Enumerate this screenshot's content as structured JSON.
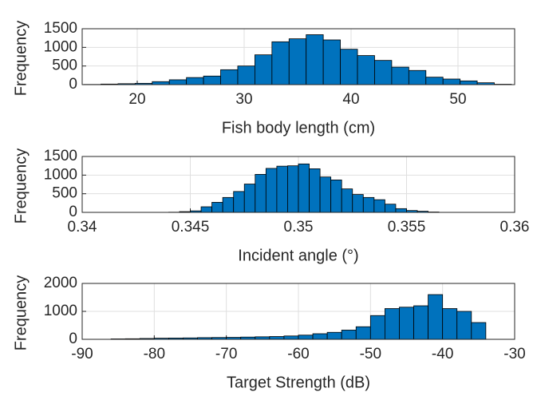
{
  "chart_data": [
    {
      "type": "histogram",
      "xlabel": "Fish body length (cm)",
      "ylabel": "Frequency",
      "color": "#0072BD",
      "grid": true,
      "bins": [
        15,
        16.6,
        18.2,
        19.8,
        21.4,
        23,
        24.6,
        26.2,
        27.8,
        29.4,
        31,
        32.6,
        34.2,
        35.8,
        37.4,
        39,
        40.6,
        42.2,
        43.8,
        45.4,
        47,
        48.6,
        50.2,
        51.8,
        53.4,
        55
      ],
      "values": [
        5,
        15,
        25,
        35,
        80,
        130,
        190,
        230,
        400,
        500,
        800,
        1150,
        1230,
        1340,
        1200,
        950,
        780,
        650,
        470,
        380,
        200,
        150,
        100,
        50,
        10
      ],
      "xlim": [
        14.85,
        55.3
      ],
      "xticks": [
        20,
        30,
        40,
        50
      ],
      "ylim": [
        0,
        1500
      ],
      "yticks": [
        0,
        500,
        1000,
        1500
      ]
    },
    {
      "type": "histogram",
      "xlabel": "Incident angle (°)",
      "ylabel": "Frequency",
      "color": "#0072BD",
      "grid": true,
      "bins": [
        0.344,
        0.3445,
        0.345,
        0.3455,
        0.346,
        0.3465,
        0.347,
        0.3475,
        0.348,
        0.3485,
        0.349,
        0.3495,
        0.35,
        0.3505,
        0.351,
        0.3515,
        0.352,
        0.3525,
        0.353,
        0.3535,
        0.354,
        0.3545,
        0.355,
        0.3555,
        0.356,
        0.3565
      ],
      "values": [
        5,
        20,
        40,
        150,
        270,
        400,
        560,
        760,
        1020,
        1180,
        1240,
        1250,
        1300,
        1170,
        950,
        870,
        630,
        480,
        400,
        340,
        220,
        100,
        50,
        30,
        10
      ],
      "xlim": [
        0.34,
        0.36
      ],
      "xticks": [
        0.34,
        0.345,
        0.35,
        0.355,
        0.36
      ],
      "ylim": [
        0,
        1500
      ],
      "yticks": [
        0,
        500,
        1000,
        1500
      ]
    },
    {
      "type": "histogram",
      "xlabel": "Target Strength (dB)",
      "ylabel": "Frequency",
      "color": "#0072BD",
      "grid": true,
      "bins": [
        -86,
        -84,
        -82,
        -80,
        -78,
        -76,
        -74,
        -72,
        -70,
        -68,
        -66,
        -64,
        -62,
        -60,
        -58,
        -56,
        -54,
        -52,
        -50,
        -48,
        -46,
        -44,
        -42,
        -40,
        -38,
        -36,
        -34
      ],
      "values": [
        15,
        20,
        30,
        40,
        45,
        50,
        60,
        65,
        70,
        80,
        90,
        100,
        120,
        150,
        200,
        250,
        330,
        450,
        850,
        1100,
        1150,
        1200,
        1600,
        1100,
        1000,
        600
      ],
      "xlim": [
        -90,
        -30
      ],
      "xticks": [
        -90,
        -80,
        -70,
        -60,
        -50,
        -40,
        -30
      ],
      "ylim": [
        0,
        2000
      ],
      "yticks": [
        0,
        1000,
        2000
      ]
    }
  ]
}
